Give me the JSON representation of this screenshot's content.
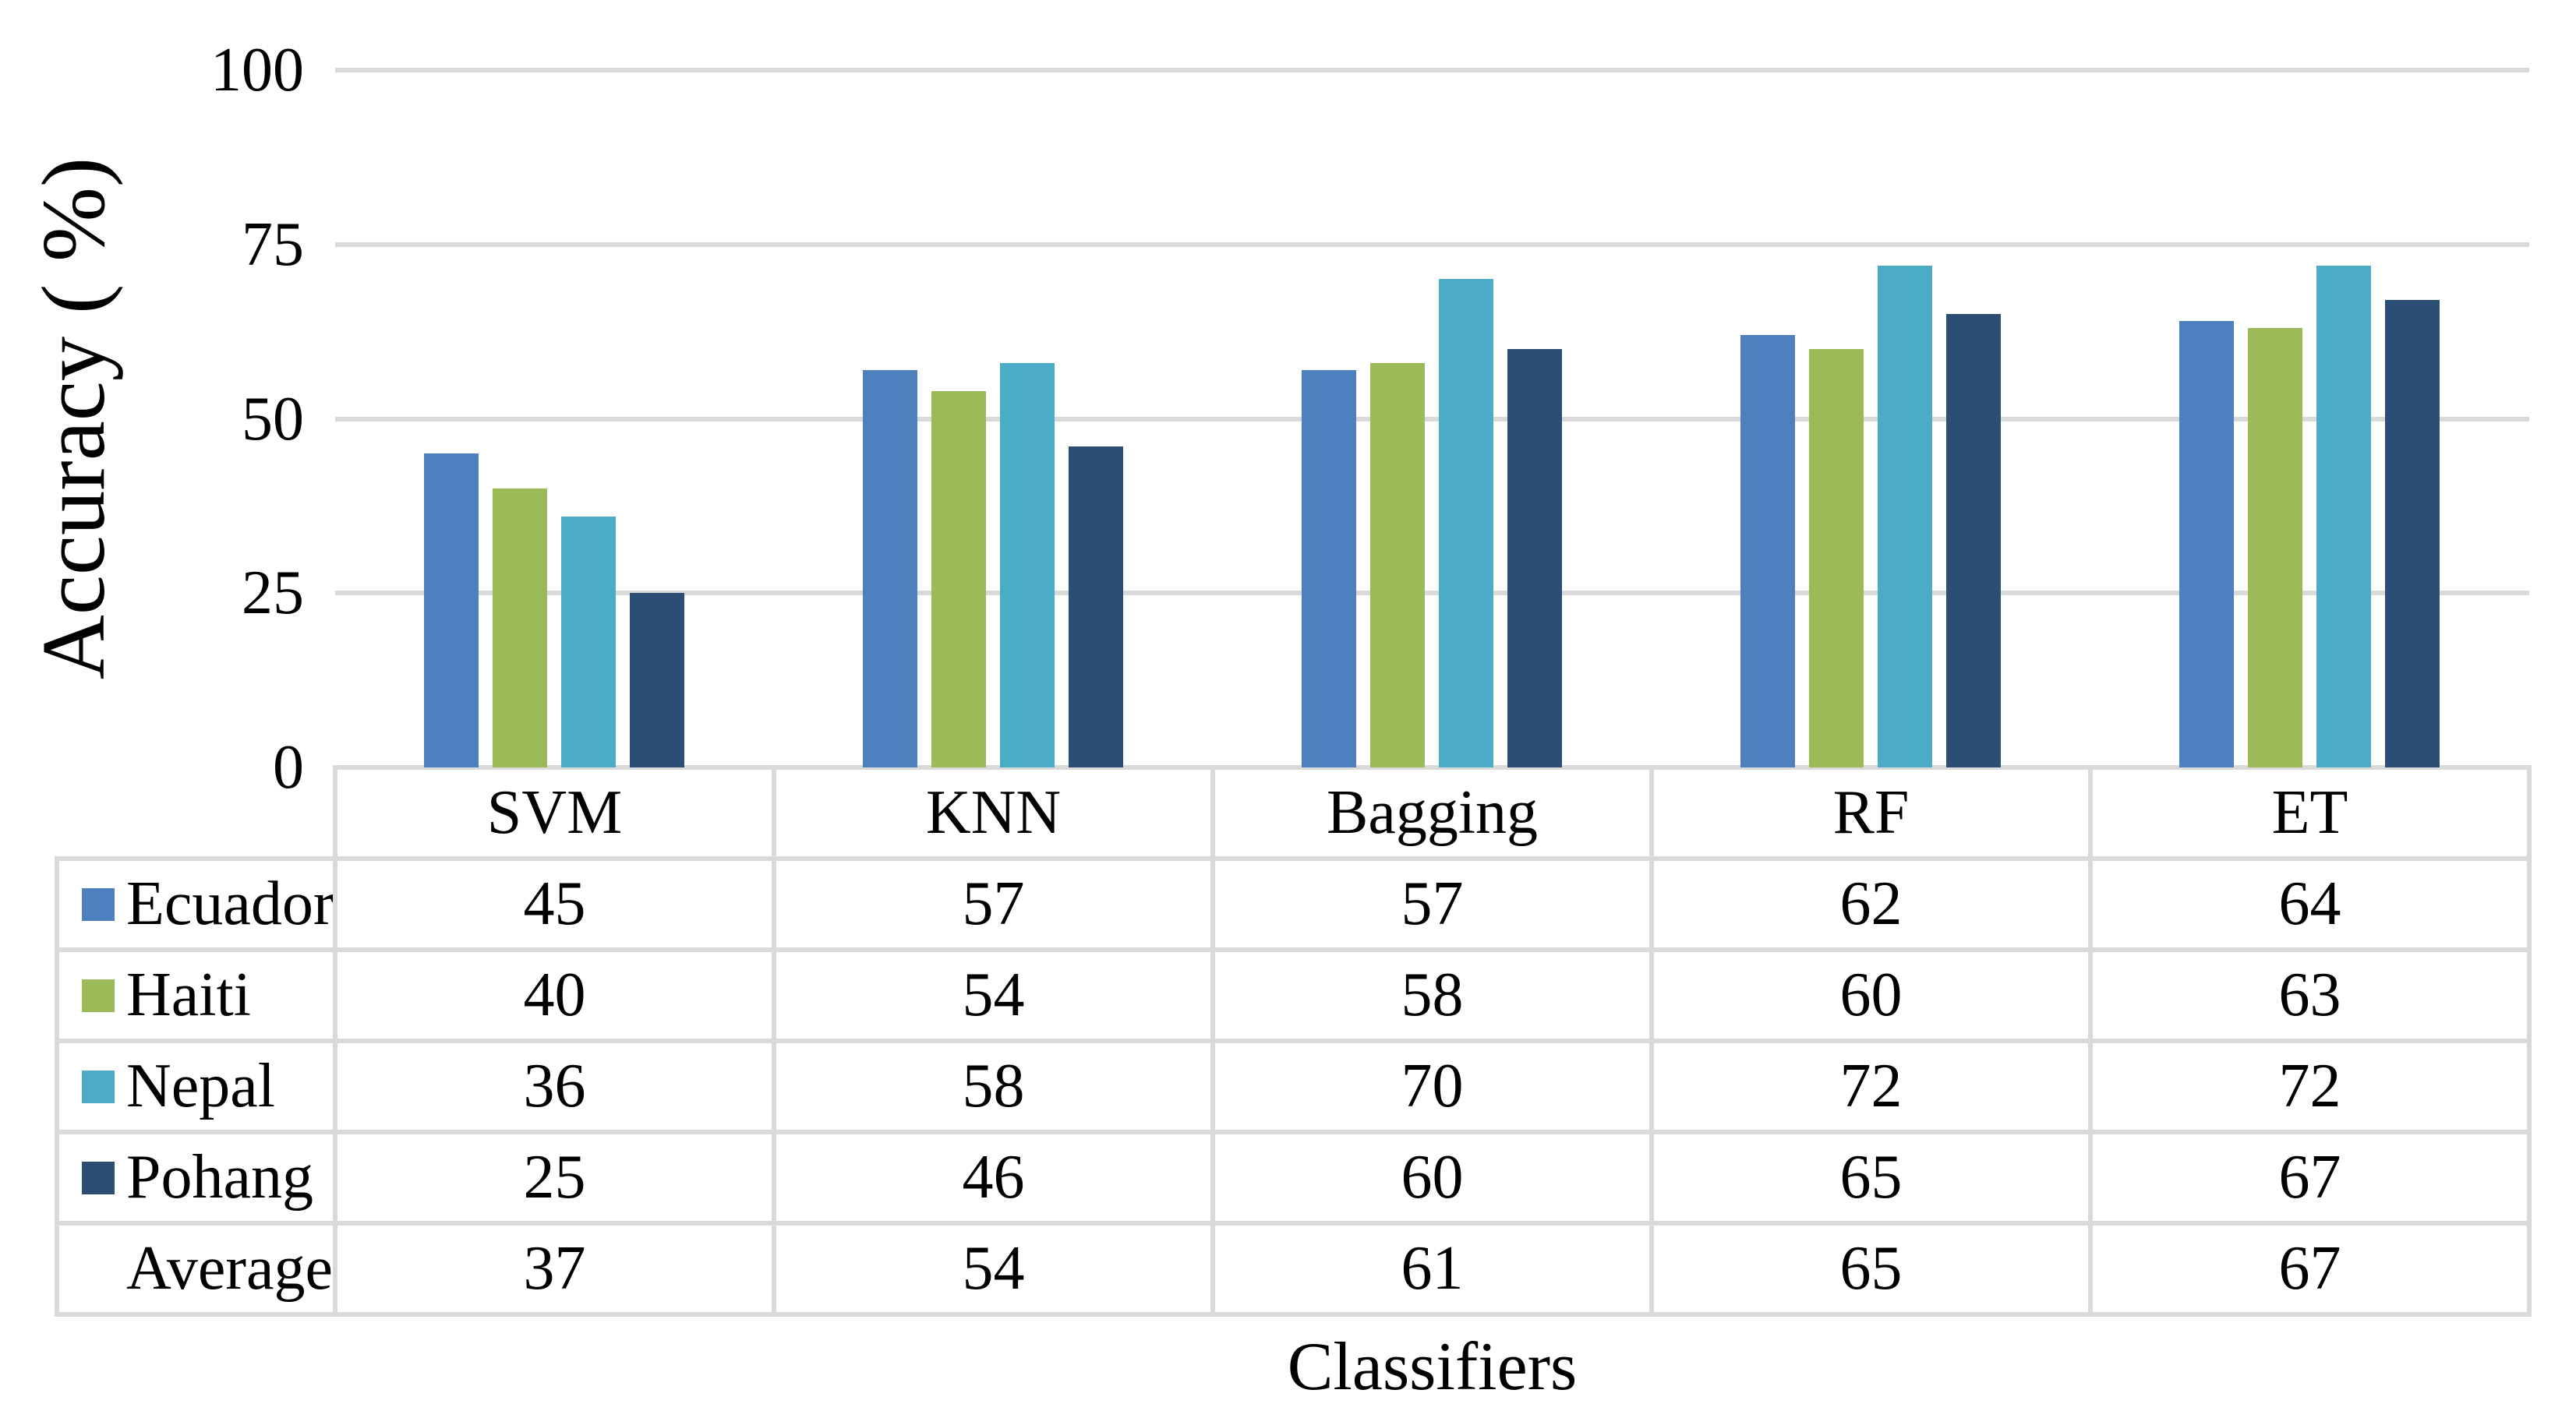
{
  "chart_data": {
    "type": "bar",
    "title": "",
    "xlabel": "Classifiers",
    "ylabel": "Accuracy ( %)",
    "ylim": [
      0,
      100
    ],
    "yticks": [
      0,
      25,
      50,
      75,
      100
    ],
    "ytick_labels": [
      "0",
      "25",
      "50",
      "75",
      "100"
    ],
    "grid": true,
    "legend_position": "table-left-column",
    "categories": [
      "SVM",
      "KNN",
      "Bagging",
      "RF",
      "ET"
    ],
    "series": [
      {
        "name": "Ecuador",
        "color": "#4d80bc",
        "values": [
          45,
          57,
          57,
          62,
          64
        ]
      },
      {
        "name": "Haiti",
        "color": "#9bbb59",
        "values": [
          40,
          54,
          58,
          60,
          63
        ]
      },
      {
        "name": "Nepal",
        "color": "#4aacc5",
        "values": [
          36,
          58,
          70,
          72,
          72
        ]
      },
      {
        "name": "Pohang",
        "color": "#2b4e75",
        "values": [
          25,
          46,
          60,
          65,
          67
        ]
      }
    ],
    "summary_row": {
      "name": "Average",
      "values": [
        37,
        54,
        61,
        65,
        67
      ]
    }
  },
  "style": {
    "gridline_color": "#d9d9d9",
    "table_border_color": "#d9d9d9",
    "text_color": "#000000",
    "background_color": "#ffffff"
  }
}
